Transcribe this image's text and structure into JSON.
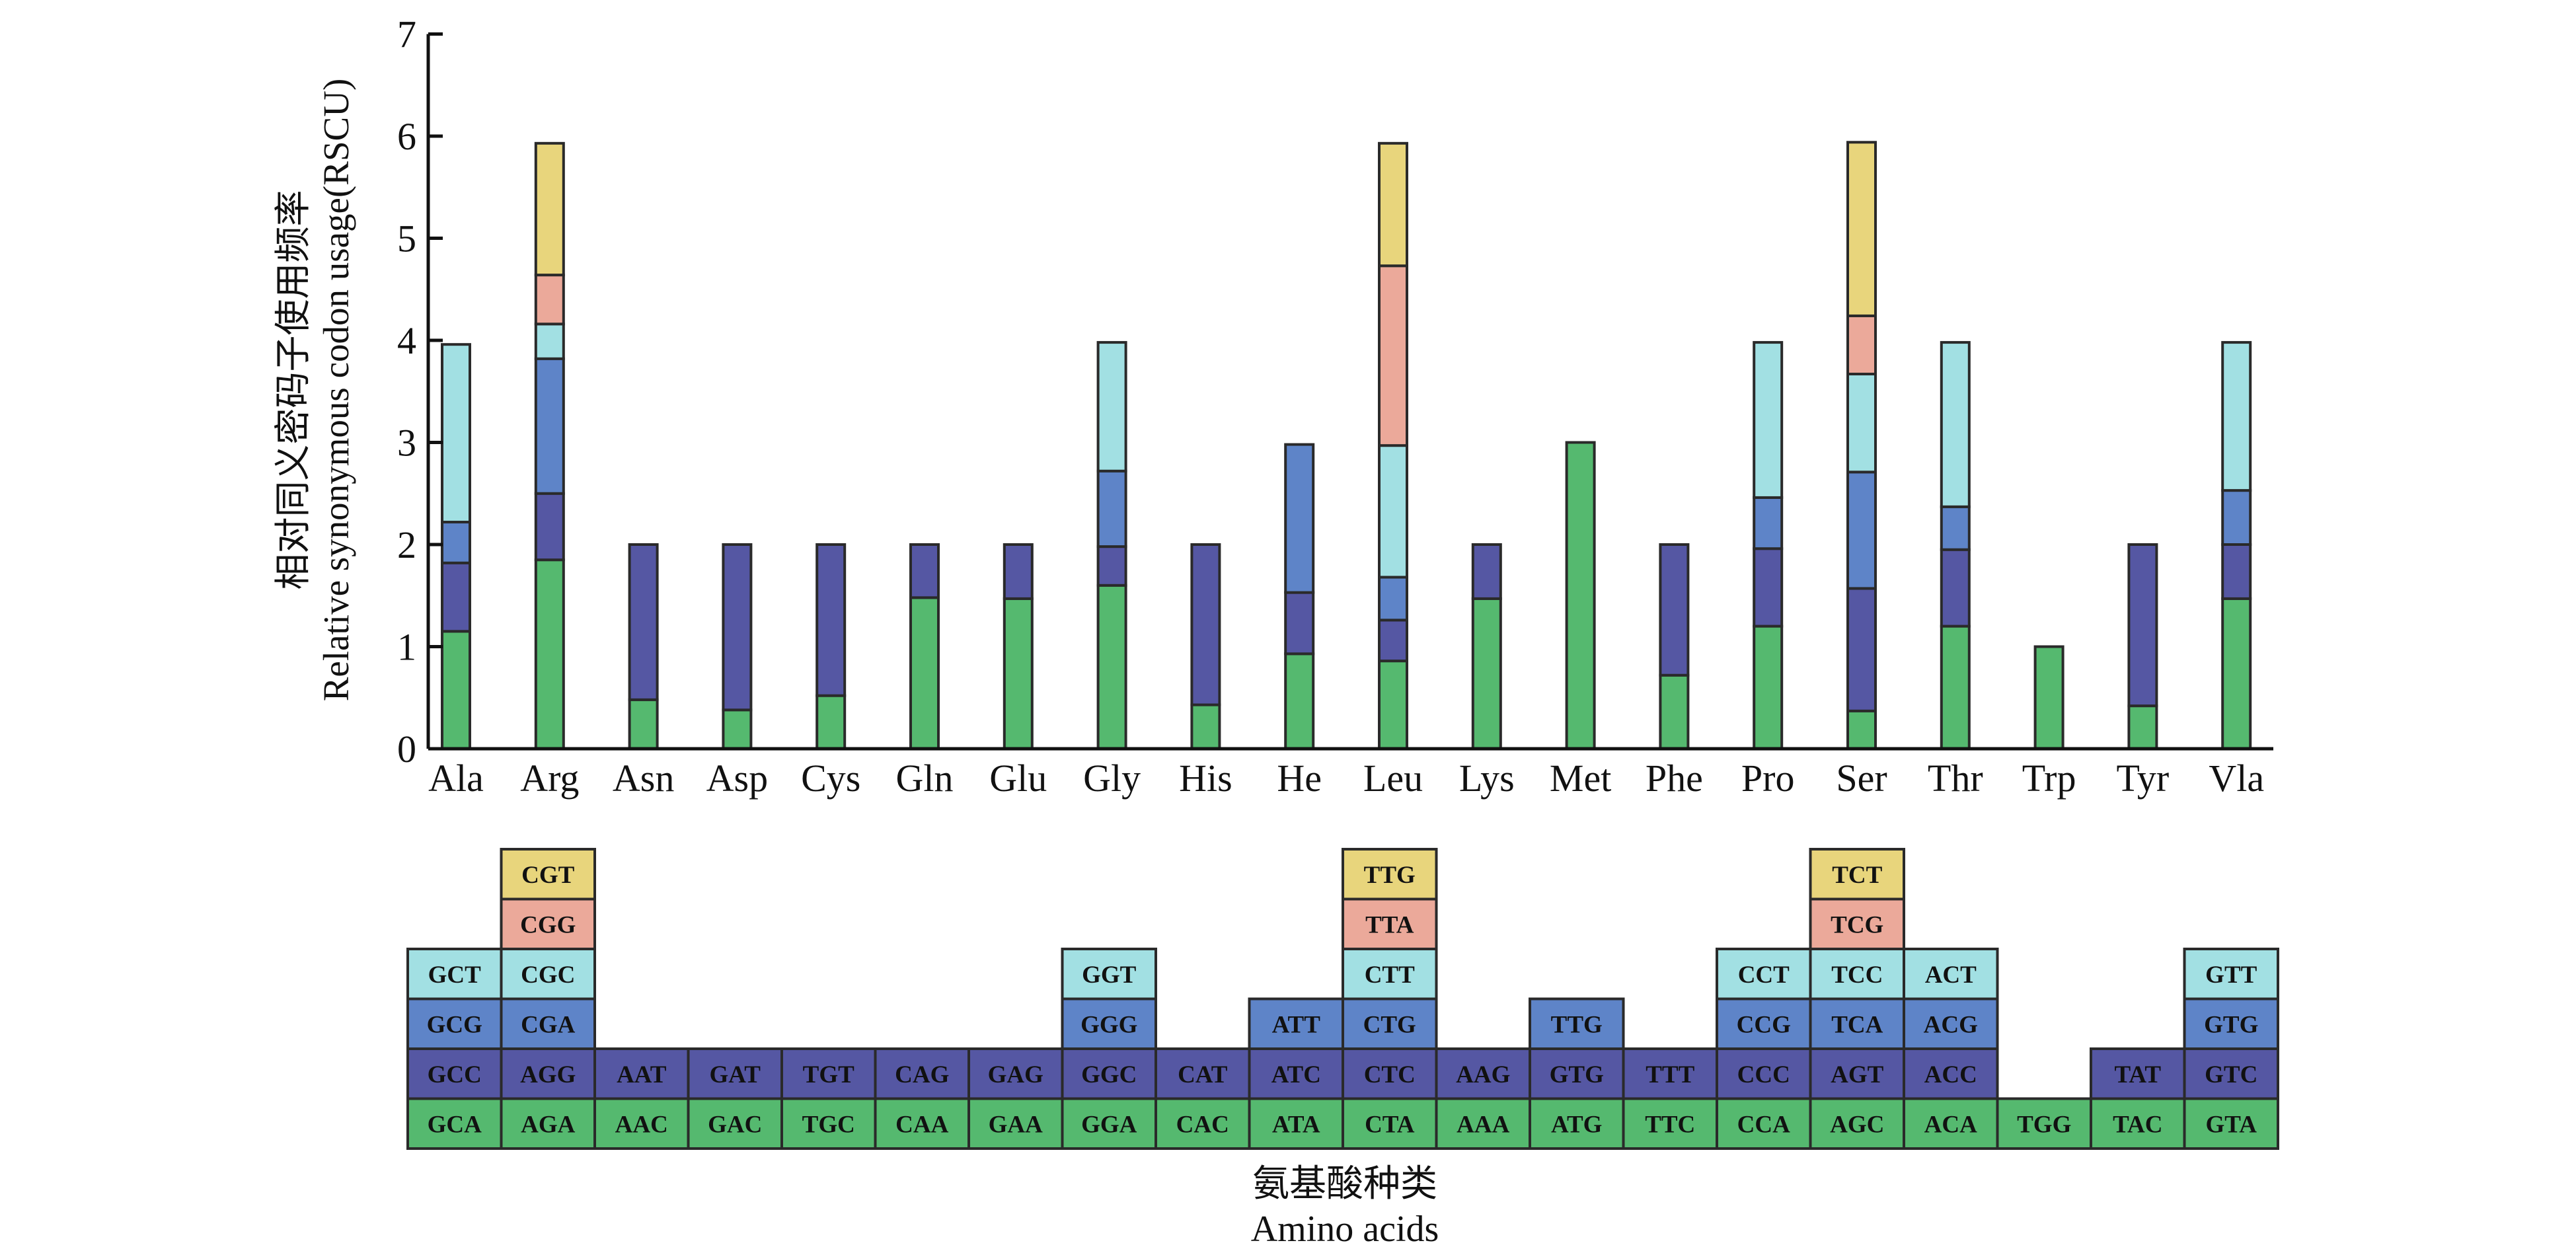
{
  "chart_data": {
    "type": "bar",
    "stacked": true,
    "title": "",
    "ylabel": [
      "相对同义密码子使用频率",
      "Relative synonymous codon usage(RSCU)"
    ],
    "xlabel": [
      "氨基酸种类",
      "Amino acids"
    ],
    "ylim": [
      0,
      7
    ],
    "yticks": [
      0,
      1,
      2,
      3,
      4,
      5,
      6,
      7
    ],
    "grid": false,
    "categories": [
      "Ala",
      "Arg",
      "Asn",
      "Asp",
      "Cys",
      "Gln",
      "Glu",
      "Gly",
      "His",
      "He",
      "Leu",
      "Lys",
      "Met",
      "Phe",
      "Pro",
      "Ser",
      "Thr",
      "Trp",
      "Tyr",
      "Vla"
    ],
    "layer_colors": [
      "#55b96f",
      "#5557a3",
      "#5e84c8",
      "#a2e0e3",
      "#eba99a",
      "#e8d57c"
    ],
    "stacks": [
      [
        1.15,
        0.67,
        0.4,
        1.74
      ],
      [
        1.85,
        0.65,
        1.32,
        0.34,
        0.48,
        1.29
      ],
      [
        0.48,
        1.52
      ],
      [
        0.38,
        1.62
      ],
      [
        0.52,
        1.48
      ],
      [
        1.48,
        0.52
      ],
      [
        1.47,
        0.53
      ],
      [
        1.6,
        0.38,
        0.74,
        1.26
      ],
      [
        0.43,
        1.57
      ],
      [
        0.93,
        0.6,
        1.45
      ],
      [
        0.86,
        0.4,
        0.42,
        1.29,
        1.76,
        1.2
      ],
      [
        1.47,
        0.53
      ],
      [
        3.0
      ],
      [
        0.72,
        1.28
      ],
      [
        1.2,
        0.76,
        0.5,
        1.52
      ],
      [
        0.37,
        1.2,
        1.14,
        0.96,
        0.57,
        1.7
      ],
      [
        1.2,
        0.75,
        0.42,
        1.61
      ],
      [
        1.0
      ],
      [
        0.42,
        1.58
      ],
      [
        1.47,
        0.53,
        0.53,
        1.45
      ]
    ],
    "codons": [
      [
        "GCA",
        "GCC",
        "GCG",
        "GCT"
      ],
      [
        "AGA",
        "AGG",
        "CGA",
        "CGC",
        "CGG",
        "CGT"
      ],
      [
        "AAC",
        "AAT"
      ],
      [
        "GAC",
        "GAT"
      ],
      [
        "TGC",
        "TGT"
      ],
      [
        "CAA",
        "CAG"
      ],
      [
        "GAA",
        "GAG"
      ],
      [
        "GGA",
        "GGC",
        "GGG",
        "GGT"
      ],
      [
        "CAC",
        "CAT"
      ],
      [
        "ATA",
        "ATC",
        "ATT"
      ],
      [
        "CTA",
        "CTC",
        "CTG",
        "CTT",
        "TTA",
        "TTG"
      ],
      [
        "AAA",
        "AAG"
      ],
      [
        "ATG",
        "GTG",
        "TTG"
      ],
      [
        "TTC",
        "TTT"
      ],
      [
        "CCA",
        "CCC",
        "CCG",
        "CCT"
      ],
      [
        "AGC",
        "AGT",
        "TCA",
        "TCC",
        "TCG",
        "TCT"
      ],
      [
        "ACA",
        "ACC",
        "ACG",
        "ACT"
      ],
      [
        "TGG"
      ],
      [
        "TAC",
        "TAT"
      ],
      [
        "GTA",
        "GTC",
        "GTG",
        "GTT"
      ]
    ]
  }
}
